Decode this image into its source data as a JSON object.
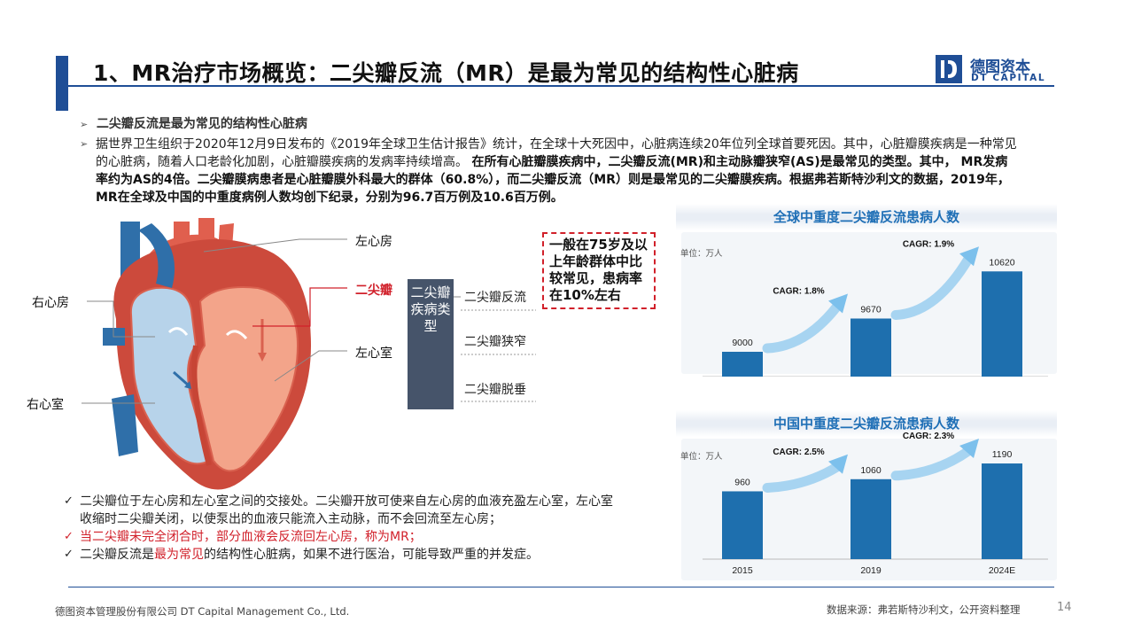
{
  "header": {
    "title": "1、MR治疗市场概览：二尖瓣反流（MR）是最为常见的结构性心脏病",
    "logo_cn": "德图资本",
    "logo_en": "DT CAPITAL"
  },
  "intro": {
    "subheading": "二尖瓣反流是最为常见的结构性心脏病",
    "p_normal": "据世界卫生组织于2020年12月9日发布的《2019年全球卫生估计报告》统计，在全球十大死因中，心脏病连续20年位列全球首要死因。其中，心脏瓣膜疾病是一种常见的心脏病，随着人口老龄化加剧，心脏瓣膜疾病的发病率持续增高。",
    "p_bold": "在所有心脏瓣膜疾病中，二尖瓣反流(MR)和主动脉瓣狭窄(AS)是最常见的类型。其中， MR发病率约为AS的4倍。二尖瓣膜病患者是心脏瓣膜外科最大的群体（60.8%），而二尖瓣反流（MR）则是最常见的二尖瓣膜疾病。根据弗若斯特沙利文的数据，2019年，MR在全球及中国的中重度病例人数均创下纪录，分别为96.7百万例及10.6百万例。"
  },
  "diagram": {
    "left_atrium": "左心房",
    "mitral_valve": "二尖瓣",
    "left_ventricle": "左心室",
    "right_atrium": "右心房",
    "right_ventricle": "右心室",
    "disease_box": "二尖瓣疾病类型",
    "types": [
      "二尖瓣反流",
      "二尖瓣狭窄",
      "二尖瓣脱垂"
    ],
    "callout": "一般在75岁及以上年龄群体中比较常见，患病率在10%左右"
  },
  "chart_data": [
    {
      "type": "bar",
      "title": "全球中重度二尖瓣反流患病人数",
      "unit": "单位：万人",
      "categories": [
        "2015",
        "2019",
        "2024E"
      ],
      "values": [
        9000,
        9670,
        10620
      ],
      "ylim": [
        8500,
        11000
      ],
      "annotations": [
        "CAGR: 1.8%",
        "CAGR: 1.9%"
      ],
      "bar_color": "#1e6fae"
    },
    {
      "type": "bar",
      "title": "中国中重度二尖瓣反流患病人数",
      "unit": "单位：万人",
      "categories": [
        "2015",
        "2019",
        "2024E"
      ],
      "values": [
        960,
        1060,
        1190
      ],
      "ylim": [
        400,
        1300
      ],
      "annotations": [
        "CAGR: 2.5%",
        "CAGR: 2.3%"
      ],
      "bar_color": "#1e6fae"
    }
  ],
  "checks": {
    "item1": "二尖瓣位于左心房和左心室之间的交接处。二尖瓣开放可使来自左心房的血液充盈左心室，左心室收缩时二尖瓣关闭，以使泵出的血液只能流入主动脉，而不会回流至左心房；",
    "item2": "当二尖瓣未完全闭合时，部分血液会反流回左心房，称为MR；",
    "item3_a": "二尖瓣反流是",
    "item3_b": "最为常见",
    "item3_c": "的结构性心脏病，如果不进行医治，可能导致严重的并发症。"
  },
  "footer": {
    "company": "德图资本管理股份有限公司 DT Capital Management Co., Ltd.",
    "source": "数据来源：弗若斯特沙利文，公开资料整理",
    "page": "14"
  }
}
